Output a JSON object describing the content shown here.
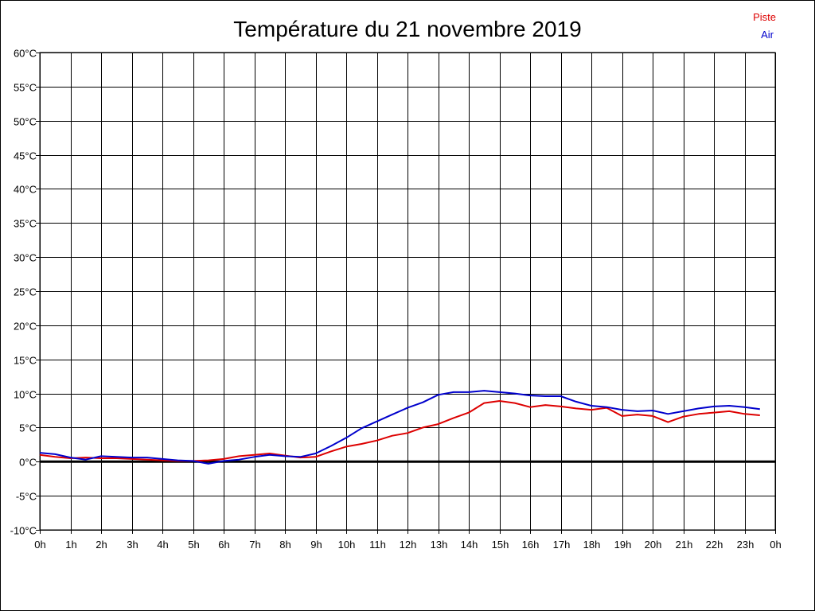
{
  "chart_data": {
    "type": "line",
    "title": "Température du 21 novembre 2019",
    "xlabel": "",
    "ylabel": "",
    "x_ticks": [
      "0h",
      "1h",
      "2h",
      "3h",
      "4h",
      "5h",
      "6h",
      "7h",
      "8h",
      "9h",
      "10h",
      "11h",
      "12h",
      "13h",
      "14h",
      "15h",
      "16h",
      "17h",
      "18h",
      "19h",
      "20h",
      "21h",
      "22h",
      "23h",
      "0h"
    ],
    "y_ticks": [
      "60°C",
      "55°C",
      "50°C",
      "45°C",
      "40°C",
      "35°C",
      "30°C",
      "25°C",
      "20°C",
      "15°C",
      "10°C",
      "5°C",
      "0°C",
      "-5°C",
      "-10°C"
    ],
    "xlim": [
      0,
      24
    ],
    "ylim": [
      -10,
      60
    ],
    "grid": true,
    "legend_position": "top-right",
    "zero_line": true,
    "series": [
      {
        "name": "Piste",
        "color": "#dd0000",
        "x": [
          0,
          0.5,
          1,
          1.5,
          2,
          2.5,
          3,
          3.5,
          4,
          4.5,
          5,
          5.5,
          6,
          6.5,
          7,
          7.5,
          8,
          8.5,
          9,
          9.5,
          10,
          10.5,
          11,
          11.5,
          12,
          12.5,
          13,
          13.5,
          14,
          14.5,
          15,
          15.5,
          16,
          16.5,
          17,
          17.5,
          18,
          18.5,
          19,
          19.5,
          20,
          20.5,
          21,
          21.5,
          22,
          22.5,
          23,
          23.5
        ],
        "values": [
          1.0,
          0.7,
          0.5,
          0.6,
          0.5,
          0.5,
          0.4,
          0.3,
          0.2,
          0.1,
          0.1,
          0.2,
          0.4,
          0.8,
          1.0,
          1.2,
          0.9,
          0.6,
          0.7,
          1.5,
          2.2,
          2.6,
          3.1,
          3.8,
          4.2,
          5.0,
          5.5,
          6.4,
          7.2,
          8.6,
          8.9,
          8.6,
          8.0,
          8.3,
          8.1,
          7.8,
          7.6,
          7.9,
          6.7,
          6.9,
          6.7,
          5.8,
          6.6,
          7.0,
          7.2,
          7.4,
          7.0,
          6.8
        ]
      },
      {
        "name": "Air",
        "color": "#0000cc",
        "x": [
          0,
          0.5,
          1,
          1.5,
          2,
          2.5,
          3,
          3.5,
          4,
          4.5,
          5,
          5.5,
          6,
          6.5,
          7,
          7.5,
          8,
          8.5,
          9,
          9.5,
          10,
          10.5,
          11,
          11.5,
          12,
          12.5,
          13,
          13.5,
          14,
          14.5,
          15,
          15.5,
          16,
          16.5,
          17,
          17.5,
          18,
          18.5,
          19,
          19.5,
          20,
          20.5,
          21,
          21.5,
          22,
          22.5,
          23,
          23.5
        ],
        "values": [
          1.3,
          1.1,
          0.6,
          0.3,
          0.8,
          0.7,
          0.6,
          0.6,
          0.4,
          0.2,
          0.1,
          -0.3,
          0.1,
          0.3,
          0.7,
          1.0,
          0.8,
          0.7,
          1.2,
          2.3,
          3.5,
          4.9,
          5.9,
          6.9,
          7.9,
          8.7,
          9.8,
          10.2,
          10.2,
          10.4,
          10.2,
          10.0,
          9.7,
          9.6,
          9.6,
          8.8,
          8.2,
          8.0,
          7.6,
          7.4,
          7.5,
          7.0,
          7.4,
          7.8,
          8.1,
          8.2,
          8.0,
          7.7
        ]
      }
    ]
  }
}
